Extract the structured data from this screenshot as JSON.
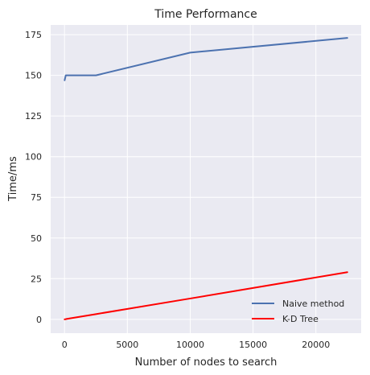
{
  "chart_data": {
    "type": "line",
    "title": "Time Performance",
    "xlabel": "Number of nodes to search",
    "ylabel": "Time/ms",
    "xlim": [
      -1100,
      23600
    ],
    "ylim": [
      -8.5,
      181
    ],
    "xticks": [
      0,
      5000,
      10000,
      15000,
      20000
    ],
    "yticks": [
      0,
      25,
      50,
      75,
      100,
      125,
      150,
      175
    ],
    "grid": true,
    "legend_position": "lower-right",
    "series": [
      {
        "name": "Naive method",
        "color": "#4c72b0",
        "x": [
          10,
          100,
          200,
          2500,
          10000,
          22500
        ],
        "y": [
          147,
          150,
          150,
          150,
          164,
          173
        ]
      },
      {
        "name": "K-D Tree",
        "color": "#ff0000",
        "x": [
          10,
          100,
          200,
          2500,
          10000,
          22500
        ],
        "y": [
          0,
          0.1,
          0.3,
          3.2,
          12.8,
          29
        ]
      }
    ]
  }
}
